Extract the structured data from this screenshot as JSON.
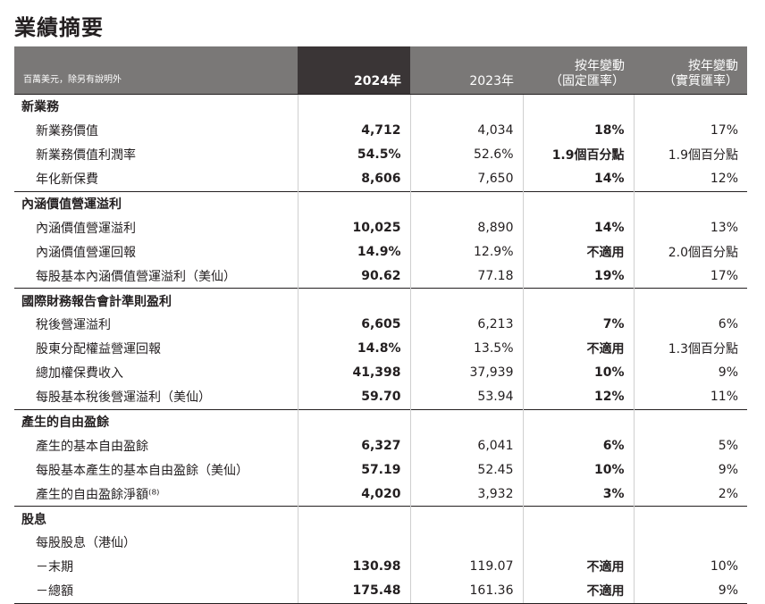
{
  "page_title": "業績摘要",
  "header": {
    "label": "百萬美元，除另有說明外",
    "col_2024": "2024年",
    "col_2023": "2023年",
    "col_fixed_1": "按年變動",
    "col_fixed_2": "（固定匯率）",
    "col_actual_1": "按年變動",
    "col_actual_2": "（實質匯率）"
  },
  "sections": [
    {
      "title": "新業務",
      "rows": [
        {
          "label": "新業務價值",
          "v2024": "4,712",
          "v2023": "4,034",
          "fixed": "18%",
          "actual": "17%"
        },
        {
          "label": "新業務價值利潤率",
          "v2024": "54.5%",
          "v2023": "52.6%",
          "fixed": "1.9個百分點",
          "actual": "1.9個百分點"
        },
        {
          "label": "年化新保費",
          "v2024": "8,606",
          "v2023": "7,650",
          "fixed": "14%",
          "actual": "12%"
        }
      ]
    },
    {
      "title": "內涵價值營運溢利",
      "rows": [
        {
          "label": "內涵價值營運溢利",
          "v2024": "10,025",
          "v2023": "8,890",
          "fixed": "14%",
          "actual": "13%"
        },
        {
          "label": "內涵價值營運回報",
          "v2024": "14.9%",
          "v2023": "12.9%",
          "fixed": "不適用",
          "actual": "2.0個百分點"
        },
        {
          "label": "每股基本內涵價值營運溢利（美仙）",
          "v2024": "90.62",
          "v2023": "77.18",
          "fixed": "19%",
          "actual": "17%"
        }
      ]
    },
    {
      "title": "國際財務報告會計準則盈利",
      "rows": [
        {
          "label": "稅後營運溢利",
          "v2024": "6,605",
          "v2023": "6,213",
          "fixed": "7%",
          "actual": "6%"
        },
        {
          "label": "股東分配權益營運回報",
          "v2024": "14.8%",
          "v2023": "13.5%",
          "fixed": "不適用",
          "actual": "1.3個百分點"
        },
        {
          "label": "總加權保費收入",
          "v2024": "41,398",
          "v2023": "37,939",
          "fixed": "10%",
          "actual": "9%"
        },
        {
          "label": "每股基本稅後營運溢利（美仙）",
          "v2024": "59.70",
          "v2023": "53.94",
          "fixed": "12%",
          "actual": "11%"
        }
      ]
    },
    {
      "title": "產生的自由盈餘",
      "rows": [
        {
          "label": "產生的基本自由盈餘",
          "v2024": "6,327",
          "v2023": "6,041",
          "fixed": "6%",
          "actual": "5%"
        },
        {
          "label": "每股基本產生的基本自由盈餘（美仙）",
          "v2024": "57.19",
          "v2023": "52.45",
          "fixed": "10%",
          "actual": "9%"
        },
        {
          "label": "產生的自由盈餘淨額⁽⁸⁾",
          "v2024": "4,020",
          "v2023": "3,932",
          "fixed": "3%",
          "actual": "2%"
        }
      ]
    },
    {
      "title": "股息",
      "rows": [
        {
          "label": "每股股息（港仙）",
          "v2024": "",
          "v2023": "",
          "fixed": "",
          "actual": ""
        },
        {
          "label": "－末期",
          "v2024": "130.98",
          "v2023": "119.07",
          "fixed": "不適用",
          "actual": "10%"
        },
        {
          "label": "－總額",
          "v2024": "175.48",
          "v2023": "161.36",
          "fixed": "不適用",
          "actual": "9%"
        }
      ]
    }
  ]
}
